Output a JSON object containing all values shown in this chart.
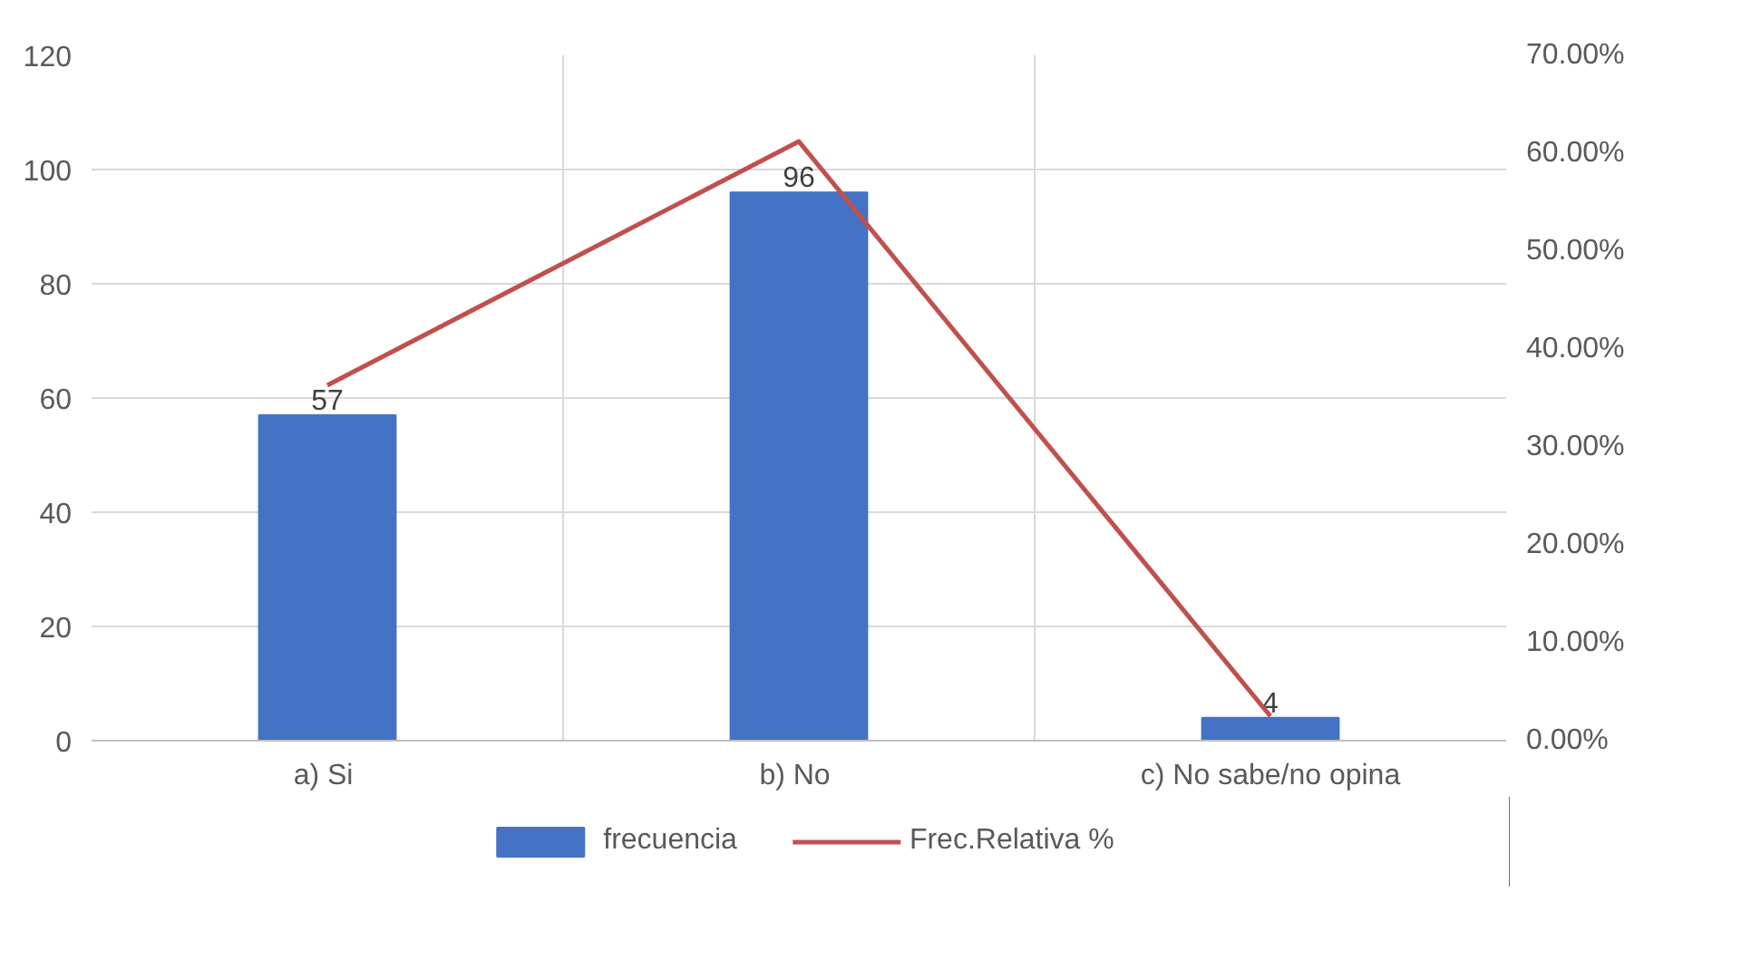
{
  "chart_data": {
    "type": "bar",
    "categories": [
      "a)  Si",
      "b)  No",
      "c) No sabe/no opina"
    ],
    "series": [
      {
        "name": "frecuencia",
        "color": "#4472c4",
        "values": [
          57,
          96,
          4
        ],
        "value_labels": [
          "57",
          "96",
          "4"
        ]
      },
      {
        "name": "Frec.Relativa %",
        "type": "line",
        "axis": "y2",
        "color": "#c0504d",
        "values": [
          36.3,
          61.2,
          2.5
        ]
      }
    ],
    "ylim": [
      0,
      120
    ],
    "yticks": [
      0,
      20,
      40,
      60,
      80,
      100,
      120
    ],
    "y2lim": [
      0,
      70
    ],
    "y2ticks": [
      {
        "value": 0,
        "label": "0.00%"
      },
      {
        "value": 10,
        "label": "10.00%"
      },
      {
        "value": 20,
        "label": "20.00%"
      },
      {
        "value": 30,
        "label": "30.00%"
      },
      {
        "value": 40,
        "label": "40.00%"
      },
      {
        "value": 50,
        "label": "50.00%"
      },
      {
        "value": 60,
        "label": "60.00%"
      },
      {
        "value": 70,
        "label": "70.00%"
      }
    ],
    "grid": true,
    "legend": "bottom",
    "marker": "none",
    "line_style": "solid"
  }
}
